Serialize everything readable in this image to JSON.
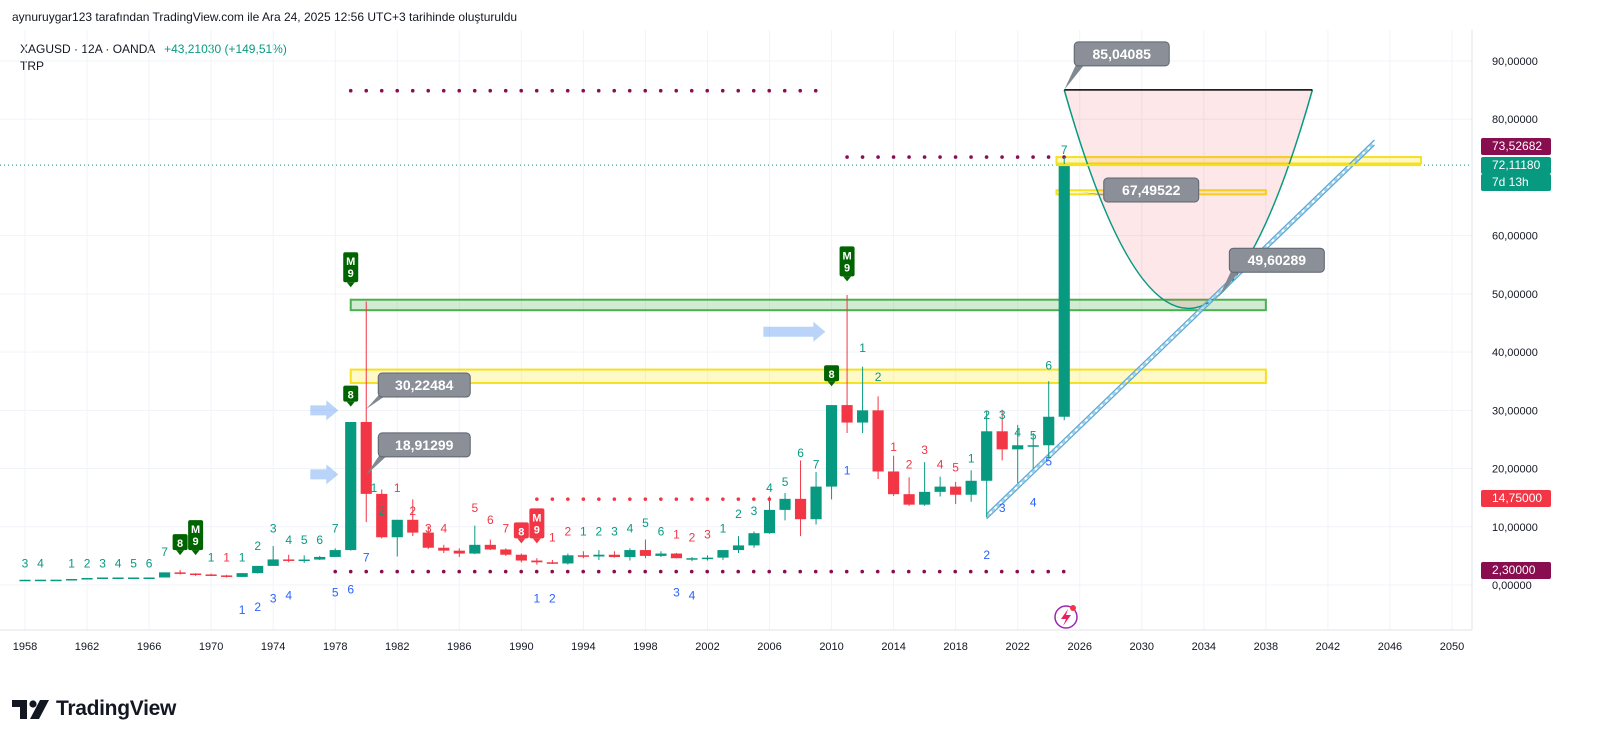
{
  "attribution": "aynuruygar123 tarafından TradingView.com ile Ara 24, 2025 12:56 UTC+3 tarihinde oluşturuldu",
  "legend": {
    "symbol": "XAGUSD · 12A · OANDA",
    "change": "+43,21030 (+149,51%)",
    "indicator": "TRP"
  },
  "brand": {
    "logo_text": "TradingView"
  },
  "price_axis": {
    "ticks": [
      "90,00000",
      "80,00000",
      "60,00000",
      "50,00000",
      "40,00000",
      "30,00000",
      "20,00000",
      "10,00000",
      "0,00000"
    ],
    "badges": [
      {
        "text": "73,52682",
        "color": "#880e4f"
      },
      {
        "text": "72,11180",
        "color": "#089981"
      },
      {
        "text": "7d 13h",
        "color": "#089981"
      },
      {
        "text": "14,75000",
        "color": "#f23645"
      },
      {
        "text": "2,30000",
        "color": "#880e4f"
      }
    ]
  },
  "time_axis": [
    "1958",
    "1962",
    "1966",
    "1970",
    "1974",
    "1978",
    "1982",
    "1986",
    "1990",
    "1994",
    "1998",
    "2002",
    "2006",
    "2010",
    "2014",
    "2018",
    "2022",
    "2026",
    "2030",
    "2034",
    "2038",
    "2042",
    "2046",
    "2050"
  ],
  "callouts": [
    "85,04085",
    "30,22484",
    "18,91299",
    "49,60289",
    "67,49522"
  ],
  "count_labels": [
    {
      "t": "3",
      "year": 1958,
      "price": 3,
      "color": "#089981"
    },
    {
      "t": "4",
      "year": 1959,
      "price": 3,
      "color": "#089981"
    },
    {
      "t": "1",
      "year": 1961,
      "price": 3,
      "color": "#089981"
    },
    {
      "t": "2",
      "year": 1962,
      "price": 3,
      "color": "#089981"
    },
    {
      "t": "3",
      "year": 1963,
      "price": 3,
      "color": "#089981"
    },
    {
      "t": "4",
      "year": 1964,
      "price": 3,
      "color": "#089981"
    },
    {
      "t": "5",
      "year": 1965,
      "price": 3,
      "color": "#089981"
    },
    {
      "t": "6",
      "year": 1966,
      "price": 3,
      "color": "#089981"
    },
    {
      "t": "7",
      "year": 1967,
      "price": 5,
      "color": "#089981"
    },
    {
      "t": "1",
      "year": 1970,
      "price": 4,
      "color": "#089981"
    },
    {
      "t": "1",
      "year": 1971,
      "price": 4,
      "color": "#f23645"
    },
    {
      "t": "1",
      "year": 1972,
      "price": 4,
      "color": "#089981"
    },
    {
      "t": "2",
      "year": 1973,
      "price": 6,
      "color": "#089981"
    },
    {
      "t": "3",
      "year": 1974,
      "price": 9,
      "color": "#089981"
    },
    {
      "t": "4",
      "year": 1975,
      "price": 7,
      "color": "#089981"
    },
    {
      "t": "5",
      "year": 1976,
      "price": 7,
      "color": "#089981"
    },
    {
      "t": "6",
      "year": 1977,
      "price": 7,
      "color": "#089981"
    },
    {
      "t": "7",
      "year": 1978,
      "price": 9,
      "color": "#089981"
    },
    {
      "t": "1",
      "year": 1980.5,
      "price": 16,
      "color": "#089981"
    },
    {
      "t": "2",
      "year": 1981,
      "price": 12,
      "color": "#089981"
    },
    {
      "t": "1",
      "year": 1982,
      "price": 16,
      "color": "#f23645"
    },
    {
      "t": "2",
      "year": 1983,
      "price": 12,
      "color": "#f23645"
    },
    {
      "t": "3",
      "year": 1984,
      "price": 9,
      "color": "#f23645"
    },
    {
      "t": "4",
      "year": 1985,
      "price": 9,
      "color": "#f23645"
    },
    {
      "t": "5",
      "year": 1987,
      "price": 12.5,
      "color": "#f23645"
    },
    {
      "t": "6",
      "year": 1988,
      "price": 10.5,
      "color": "#f23645"
    },
    {
      "t": "7",
      "year": 1989,
      "price": 9,
      "color": "#f23645"
    },
    {
      "t": "1",
      "year": 1992,
      "price": 7.5,
      "color": "#f23645"
    },
    {
      "t": "2",
      "year": 1993,
      "price": 8.5,
      "color": "#f23645"
    },
    {
      "t": "1",
      "year": 1994,
      "price": 8.5,
      "color": "#089981"
    },
    {
      "t": "2",
      "year": 1995,
      "price": 8.5,
      "color": "#089981"
    },
    {
      "t": "3",
      "year": 1996,
      "price": 8.5,
      "color": "#089981"
    },
    {
      "t": "4",
      "year": 1997,
      "price": 9,
      "color": "#089981"
    },
    {
      "t": "5",
      "year": 1998,
      "price": 10,
      "color": "#089981"
    },
    {
      "t": "6",
      "year": 1999,
      "price": 8.5,
      "color": "#089981"
    },
    {
      "t": "1",
      "year": 2000,
      "price": 8,
      "color": "#f23645"
    },
    {
      "t": "2",
      "year": 2001,
      "price": 7.5,
      "color": "#f23645"
    },
    {
      "t": "3",
      "year": 2002,
      "price": 8,
      "color": "#f23645"
    },
    {
      "t": "1",
      "year": 2003,
      "price": 9,
      "color": "#089981"
    },
    {
      "t": "2",
      "year": 2004,
      "price": 11.5,
      "color": "#089981"
    },
    {
      "t": "3",
      "year": 2005,
      "price": 12,
      "color": "#089981"
    },
    {
      "t": "4",
      "year": 2006,
      "price": 16,
      "color": "#089981"
    },
    {
      "t": "5",
      "year": 2007,
      "price": 17,
      "color": "#089981"
    },
    {
      "t": "6",
      "year": 2008,
      "price": 22,
      "color": "#089981"
    },
    {
      "t": "7",
      "year": 2009,
      "price": 20,
      "color": "#089981"
    },
    {
      "t": "1",
      "year": 2012,
      "price": 40,
      "color": "#089981"
    },
    {
      "t": "2",
      "year": 2013,
      "price": 35,
      "color": "#089981"
    },
    {
      "t": "1",
      "year": 2014,
      "price": 23,
      "color": "#f23645"
    },
    {
      "t": "2",
      "year": 2015,
      "price": 20,
      "color": "#f23645"
    },
    {
      "t": "3",
      "year": 2016,
      "price": 22.5,
      "color": "#f23645"
    },
    {
      "t": "4",
      "year": 2017,
      "price": 20,
      "color": "#f23645"
    },
    {
      "t": "5",
      "year": 2018,
      "price": 19.5,
      "color": "#f23645"
    },
    {
      "t": "1",
      "year": 2019,
      "price": 21,
      "color": "#089981"
    },
    {
      "t": "2",
      "year": 2020,
      "price": 28.5,
      "color": "#089981"
    },
    {
      "t": "3",
      "year": 2021,
      "price": 28.5,
      "color": "#089981"
    },
    {
      "t": "4",
      "year": 2022,
      "price": 25.5,
      "color": "#089981"
    },
    {
      "t": "5",
      "year": 2023,
      "price": 25,
      "color": "#089981"
    },
    {
      "t": "6",
      "year": 2024,
      "price": 37,
      "color": "#089981"
    },
    {
      "t": "7",
      "year": 2025,
      "price": 74,
      "color": "#089981"
    },
    {
      "t": "1",
      "year": 1972,
      "price": -5,
      "color": "#2962ff"
    },
    {
      "t": "2",
      "year": 1973,
      "price": -4.5,
      "color": "#2962ff"
    },
    {
      "t": "3",
      "year": 1974,
      "price": -3,
      "color": "#2962ff"
    },
    {
      "t": "4",
      "year": 1975,
      "price": -2.5,
      "color": "#2962ff"
    },
    {
      "t": "5",
      "year": 1978,
      "price": -2,
      "color": "#2962ff"
    },
    {
      "t": "6",
      "year": 1979,
      "price": -1.5,
      "color": "#2962ff"
    },
    {
      "t": "7",
      "year": 1980,
      "price": 4,
      "color": "#2962ff"
    },
    {
      "t": "1",
      "year": 1991,
      "price": -3,
      "color": "#2962ff"
    },
    {
      "t": "2",
      "year": 1992,
      "price": -3,
      "color": "#2962ff"
    },
    {
      "t": "3",
      "year": 2000,
      "price": -2,
      "color": "#2962ff"
    },
    {
      "t": "4",
      "year": 2001,
      "price": -2.5,
      "color": "#2962ff"
    },
    {
      "t": "1",
      "year": 2011,
      "price": 19,
      "color": "#2962ff"
    },
    {
      "t": "2",
      "year": 2020,
      "price": 4.5,
      "color": "#2962ff"
    },
    {
      "t": "3",
      "year": 2021,
      "price": 12.5,
      "color": "#2962ff"
    },
    {
      "t": "4",
      "year": 2023,
      "price": 13.5,
      "color": "#2962ff"
    },
    {
      "t": "5",
      "year": 2024,
      "price": 20.5,
      "color": "#2962ff"
    }
  ],
  "setup_markers": [
    {
      "label": "8",
      "year": 1968,
      "price": 6,
      "color": "#006400"
    },
    {
      "label": "M9",
      "year": 1969,
      "price": 6,
      "color": "#006400"
    },
    {
      "label": "M9",
      "year": 1979,
      "price": 52,
      "color": "#006400"
    },
    {
      "label": "8",
      "year": 1979,
      "price": 31.5,
      "color": "#006400"
    },
    {
      "label": "8",
      "year": 1990,
      "price": 8,
      "color": "#f23645"
    },
    {
      "label": "M9",
      "year": 1991,
      "price": 8,
      "color": "#f23645"
    },
    {
      "label": "M9",
      "year": 2011,
      "price": 53,
      "color": "#006400"
    },
    {
      "label": "8",
      "year": 2010,
      "price": 35,
      "color": "#006400"
    }
  ],
  "chart_data": {
    "type": "candlestick",
    "timeframe": "12 months",
    "x_range": [
      1957,
      2051.5
    ],
    "y_range": [
      -9,
      97
    ],
    "candles": [
      {
        "year": 1958,
        "open": 0.9,
        "high": 0.92,
        "low": 0.88,
        "close": 0.9
      },
      {
        "year": 1959,
        "open": 0.9,
        "high": 0.92,
        "low": 0.89,
        "close": 0.91
      },
      {
        "year": 1960,
        "open": 0.91,
        "high": 0.92,
        "low": 0.9,
        "close": 0.91
      },
      {
        "year": 1961,
        "open": 0.91,
        "high": 1.04,
        "low": 0.91,
        "close": 1.03
      },
      {
        "year": 1962,
        "open": 1.03,
        "high": 1.22,
        "low": 1.02,
        "close": 1.2
      },
      {
        "year": 1963,
        "open": 1.2,
        "high": 1.29,
        "low": 1.2,
        "close": 1.29
      },
      {
        "year": 1964,
        "open": 1.29,
        "high": 1.29,
        "low": 1.29,
        "close": 1.29
      },
      {
        "year": 1965,
        "open": 1.29,
        "high": 1.29,
        "low": 1.29,
        "close": 1.29
      },
      {
        "year": 1966,
        "open": 1.29,
        "high": 1.29,
        "low": 1.29,
        "close": 1.29
      },
      {
        "year": 1967,
        "open": 1.29,
        "high": 2.17,
        "low": 1.29,
        "close": 2.17
      },
      {
        "year": 1968,
        "open": 2.17,
        "high": 2.56,
        "low": 1.8,
        "close": 1.97
      },
      {
        "year": 1969,
        "open": 1.97,
        "high": 2.02,
        "low": 1.56,
        "close": 1.81
      },
      {
        "year": 1970,
        "open": 1.81,
        "high": 1.95,
        "low": 1.57,
        "close": 1.64
      },
      {
        "year": 1971,
        "open": 1.64,
        "high": 1.75,
        "low": 1.29,
        "close": 1.39
      },
      {
        "year": 1972,
        "open": 1.39,
        "high": 2.05,
        "low": 1.39,
        "close": 2.04
      },
      {
        "year": 1973,
        "open": 2.04,
        "high": 3.28,
        "low": 1.96,
        "close": 3.28
      },
      {
        "year": 1974,
        "open": 3.28,
        "high": 6.7,
        "low": 3.27,
        "close": 4.39
      },
      {
        "year": 1975,
        "open": 4.39,
        "high": 5.2,
        "low": 3.9,
        "close": 4.2
      },
      {
        "year": 1976,
        "open": 4.2,
        "high": 5.1,
        "low": 3.8,
        "close": 4.37
      },
      {
        "year": 1977,
        "open": 4.37,
        "high": 5.0,
        "low": 4.3,
        "close": 4.82
      },
      {
        "year": 1978,
        "open": 4.82,
        "high": 6.3,
        "low": 4.8,
        "close": 6.0
      },
      {
        "year": 1979,
        "open": 6.0,
        "high": 28.0,
        "low": 5.9,
        "close": 28.0
      },
      {
        "year": 1980,
        "open": 28.0,
        "high": 48.7,
        "low": 10.8,
        "close": 15.65
      },
      {
        "year": 1981,
        "open": 15.65,
        "high": 16.4,
        "low": 7.99,
        "close": 8.2
      },
      {
        "year": 1982,
        "open": 8.2,
        "high": 11.2,
        "low": 4.9,
        "close": 11.2
      },
      {
        "year": 1983,
        "open": 11.2,
        "high": 14.7,
        "low": 8.4,
        "close": 9.0
      },
      {
        "year": 1984,
        "open": 9.0,
        "high": 10.1,
        "low": 6.2,
        "close": 6.4
      },
      {
        "year": 1985,
        "open": 6.4,
        "high": 6.9,
        "low": 5.5,
        "close": 5.9
      },
      {
        "year": 1986,
        "open": 5.9,
        "high": 6.3,
        "low": 4.8,
        "close": 5.4
      },
      {
        "year": 1987,
        "open": 5.4,
        "high": 10.2,
        "low": 5.3,
        "close": 6.9
      },
      {
        "year": 1988,
        "open": 6.9,
        "high": 7.8,
        "low": 6.0,
        "close": 6.1
      },
      {
        "year": 1989,
        "open": 6.1,
        "high": 6.3,
        "low": 5.0,
        "close": 5.2
      },
      {
        "year": 1990,
        "open": 5.2,
        "high": 5.4,
        "low": 3.9,
        "close": 4.2
      },
      {
        "year": 1991,
        "open": 4.2,
        "high": 4.6,
        "low": 3.5,
        "close": 3.9
      },
      {
        "year": 1992,
        "open": 3.9,
        "high": 4.3,
        "low": 3.6,
        "close": 3.7
      },
      {
        "year": 1993,
        "open": 3.7,
        "high": 5.4,
        "low": 3.5,
        "close": 5.1
      },
      {
        "year": 1994,
        "open": 5.1,
        "high": 5.8,
        "low": 4.6,
        "close": 4.9
      },
      {
        "year": 1995,
        "open": 4.9,
        "high": 6.0,
        "low": 4.3,
        "close": 5.2
      },
      {
        "year": 1996,
        "open": 5.2,
        "high": 5.8,
        "low": 4.7,
        "close": 4.8
      },
      {
        "year": 1997,
        "open": 4.8,
        "high": 6.3,
        "low": 4.2,
        "close": 6.0
      },
      {
        "year": 1998,
        "open": 6.0,
        "high": 7.8,
        "low": 4.6,
        "close": 5.0
      },
      {
        "year": 1999,
        "open": 5.0,
        "high": 5.8,
        "low": 4.8,
        "close": 5.4
      },
      {
        "year": 2000,
        "open": 5.4,
        "high": 5.5,
        "low": 4.6,
        "close": 4.6
      },
      {
        "year": 2001,
        "open": 4.6,
        "high": 4.8,
        "low": 4.1,
        "close": 4.6
      },
      {
        "year": 2002,
        "open": 4.6,
        "high": 5.1,
        "low": 4.2,
        "close": 4.7
      },
      {
        "year": 2003,
        "open": 4.7,
        "high": 6.0,
        "low": 4.3,
        "close": 6.0
      },
      {
        "year": 2004,
        "open": 6.0,
        "high": 8.4,
        "low": 5.5,
        "close": 6.8
      },
      {
        "year": 2005,
        "open": 6.8,
        "high": 9.2,
        "low": 6.4,
        "close": 8.9
      },
      {
        "year": 2006,
        "open": 8.9,
        "high": 15.2,
        "low": 8.8,
        "close": 12.9
      },
      {
        "year": 2007,
        "open": 12.9,
        "high": 15.8,
        "low": 11.1,
        "close": 14.8
      },
      {
        "year": 2008,
        "open": 14.8,
        "high": 21.4,
        "low": 8.4,
        "close": 11.3
      },
      {
        "year": 2009,
        "open": 11.3,
        "high": 19.4,
        "low": 10.4,
        "close": 16.9
      },
      {
        "year": 2010,
        "open": 16.9,
        "high": 30.9,
        "low": 14.7,
        "close": 30.9
      },
      {
        "year": 2011,
        "open": 30.9,
        "high": 49.8,
        "low": 26.1,
        "close": 27.9
      },
      {
        "year": 2012,
        "open": 27.9,
        "high": 37.5,
        "low": 26.1,
        "close": 30.0
      },
      {
        "year": 2013,
        "open": 30.0,
        "high": 32.4,
        "low": 18.2,
        "close": 19.5
      },
      {
        "year": 2014,
        "open": 19.5,
        "high": 22.2,
        "low": 15.3,
        "close": 15.6
      },
      {
        "year": 2015,
        "open": 15.6,
        "high": 18.5,
        "low": 13.6,
        "close": 13.8
      },
      {
        "year": 2016,
        "open": 13.8,
        "high": 21.1,
        "low": 13.6,
        "close": 16.0
      },
      {
        "year": 2017,
        "open": 16.0,
        "high": 18.6,
        "low": 15.2,
        "close": 16.9
      },
      {
        "year": 2018,
        "open": 16.9,
        "high": 17.7,
        "low": 13.9,
        "close": 15.5
      },
      {
        "year": 2019,
        "open": 15.5,
        "high": 19.7,
        "low": 14.3,
        "close": 17.9
      },
      {
        "year": 2020,
        "open": 17.9,
        "high": 29.9,
        "low": 11.6,
        "close": 26.4
      },
      {
        "year": 2021,
        "open": 26.4,
        "high": 30.1,
        "low": 21.4,
        "close": 23.3
      },
      {
        "year": 2022,
        "open": 23.3,
        "high": 27.5,
        "low": 17.5,
        "close": 24.0
      },
      {
        "year": 2023,
        "open": 24.0,
        "high": 26.1,
        "low": 20.0,
        "close": 24.0
      },
      {
        "year": 2024,
        "open": 24.0,
        "high": 35.0,
        "low": 22.0,
        "close": 28.9
      },
      {
        "year": 2025,
        "open": 28.9,
        "high": 73.53,
        "low": 28.3,
        "close": 72.11
      }
    ],
    "horizontal_levels": [
      {
        "price": 85.04085,
        "from": 2025,
        "to": 2041
      },
      {
        "price": 72.1118,
        "from": 2024.5,
        "to": 2048
      }
    ],
    "dotted_levels": [
      {
        "price": 84.9,
        "from": 1979,
        "to": 2009,
        "color": "#880e4f"
      },
      {
        "price": 73.5,
        "from": 2011,
        "to": 2025,
        "color": "#880e4f"
      },
      {
        "price": 14.75,
        "from": 1991,
        "to": 2006,
        "color": "#f23645"
      },
      {
        "price": 2.3,
        "from": 1978,
        "to": 2025,
        "color": "#880e4f"
      }
    ],
    "zones": [
      {
        "color": "green",
        "from": 1979,
        "to": 2038,
        "low": 47.2,
        "high": 49.0
      },
      {
        "color": "yellow",
        "from": 1979,
        "to": 2038,
        "low": 34.7,
        "high": 37.0
      },
      {
        "color": "yellow",
        "from": 2024.5,
        "to": 2048,
        "low": 72.4,
        "high": 73.5
      },
      {
        "color": "yellow",
        "from": 2024.5,
        "to": 2038,
        "low": 67.1,
        "high": 67.8
      }
    ],
    "trendline": {
      "from": [
        2020,
        11.8
      ],
      "to": [
        2045,
        76
      ]
    },
    "arc": {
      "from": [
        2025,
        85.04
      ],
      "bottom": [
        2033,
        47.5
      ],
      "to": [
        2041,
        85.04
      ]
    },
    "callouts": [
      {
        "label": "85,04085",
        "year": 2025,
        "price": 85.04
      },
      {
        "label": "30,22484",
        "year": 1980,
        "price": 30.22
      },
      {
        "label": "18,91299",
        "year": 1980,
        "price": 18.91
      },
      {
        "label": "49,60289",
        "year": 2035,
        "price": 49.6
      },
      {
        "label": "67,49522",
        "year": 2026,
        "price": 67.5
      }
    ]
  }
}
